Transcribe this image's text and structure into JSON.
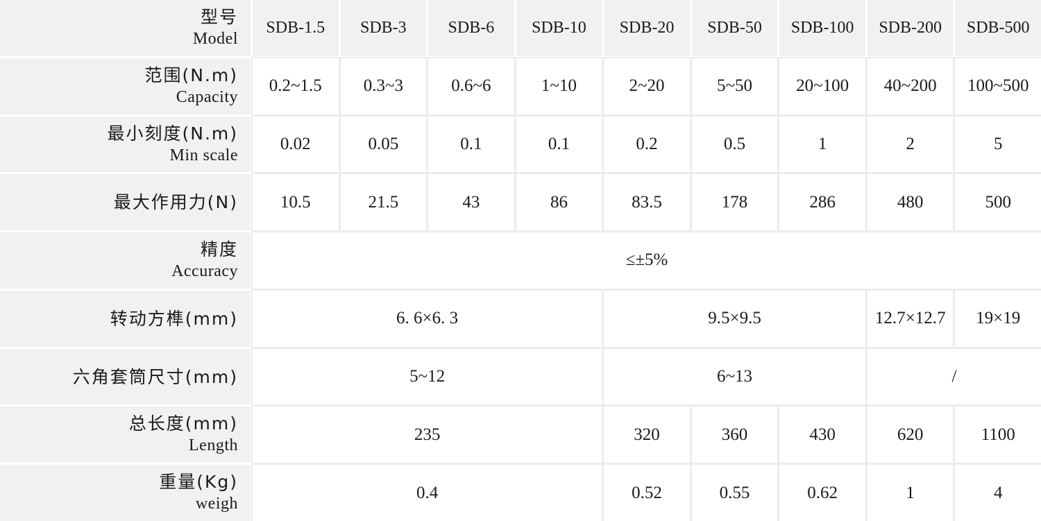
{
  "colors": {
    "header_bg": "#f1f1f1",
    "grid_line": "#ececec",
    "text": "#1a1a1a",
    "cell_bg": "#ffffff"
  },
  "table": {
    "header": {
      "label_zh": "型号",
      "label_en": "Model",
      "models": [
        "SDB-1.5",
        "SDB-3",
        "SDB-6",
        "SDB-10",
        "SDB-20",
        "SDB-50",
        "SDB-100",
        "SDB-200",
        "SDB-500"
      ]
    },
    "rows": [
      {
        "zh": "范围(N.m)",
        "en": "Capacity",
        "cells": [
          {
            "t": "0.2~1.5"
          },
          {
            "t": "0.3~3"
          },
          {
            "t": "0.6~6"
          },
          {
            "t": "1~10"
          },
          {
            "t": "2~20"
          },
          {
            "t": "5~50"
          },
          {
            "t": "20~100"
          },
          {
            "t": "40~200"
          },
          {
            "t": "100~500"
          }
        ]
      },
      {
        "zh": "最小刻度(N.m)",
        "en": "Min scale",
        "cells": [
          {
            "t": "0.02"
          },
          {
            "t": "0.05"
          },
          {
            "t": "0.1"
          },
          {
            "t": "0.1"
          },
          {
            "t": "0.2"
          },
          {
            "t": "0.5"
          },
          {
            "t": "1"
          },
          {
            "t": "2"
          },
          {
            "t": "5"
          }
        ]
      },
      {
        "zh": "最大作用力(N)",
        "en": "",
        "cells": [
          {
            "t": "10.5"
          },
          {
            "t": "21.5"
          },
          {
            "t": "43"
          },
          {
            "t": "86"
          },
          {
            "t": "83.5"
          },
          {
            "t": "178"
          },
          {
            "t": "286"
          },
          {
            "t": "480"
          },
          {
            "t": "500"
          }
        ]
      },
      {
        "zh": "精度",
        "en": "Accuracy",
        "cells": [
          {
            "t": "≤±5%",
            "span": 9
          }
        ]
      },
      {
        "zh": "转动方榫(mm)",
        "en": "",
        "cells": [
          {
            "t": "6. 6×6. 3",
            "span": 4
          },
          {
            "t": "9.5×9.5",
            "span": 3
          },
          {
            "t": "12.7×12.7",
            "span": 1
          },
          {
            "t": "19×19",
            "span": 1
          }
        ]
      },
      {
        "zh": "六角套筒尺寸(mm)",
        "en": "",
        "cells": [
          {
            "t": "5~12",
            "span": 4
          },
          {
            "t": "6~13",
            "span": 3
          },
          {
            "t": "/",
            "span": 2
          }
        ]
      },
      {
        "zh": "总长度(mm)",
        "en": "Length",
        "cells": [
          {
            "t": "235",
            "span": 4
          },
          {
            "t": "320"
          },
          {
            "t": "360"
          },
          {
            "t": "430"
          },
          {
            "t": "620"
          },
          {
            "t": "1100"
          }
        ]
      },
      {
        "zh": "重量(Kg)",
        "en": "weigh",
        "cells": [
          {
            "t": "0.4",
            "span": 4
          },
          {
            "t": "0.52"
          },
          {
            "t": "0.55"
          },
          {
            "t": "0.62"
          },
          {
            "t": "1"
          },
          {
            "t": "4"
          }
        ]
      }
    ]
  }
}
